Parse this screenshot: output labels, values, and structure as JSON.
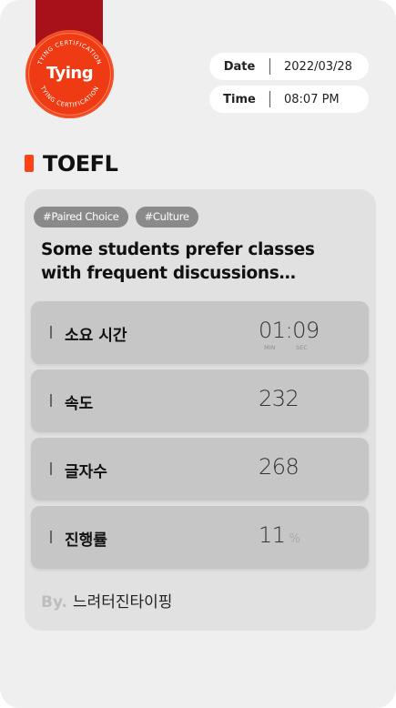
{
  "medal": {
    "word": "Tying",
    "arc_top": "TYING CERTIFICATION",
    "arc_bottom": "TYING CERTIFICATION"
  },
  "date": {
    "label": "Date",
    "value": "2022/03/28"
  },
  "time": {
    "label": "Time",
    "value": "08:07 PM"
  },
  "section_title": "TOEFL",
  "tags": [
    "#Paired Choice",
    "#Culture"
  ],
  "headline": "Some students prefer classes with frequent discussions between the…",
  "stats": {
    "duration": {
      "label": "소요 시간",
      "value": "01:09",
      "min_label": "MIN",
      "sec_label": "SEC"
    },
    "speed": {
      "label": "속도",
      "value": "232"
    },
    "chars": {
      "label": "글자수",
      "value": "268"
    },
    "progress": {
      "label": "진행률",
      "value": "11",
      "unit": "%"
    }
  },
  "byline": {
    "prefix": "By.",
    "author": "느려터진타이핑"
  },
  "colors": {
    "accent": "#ff4317",
    "ribbon": "#a8101a",
    "medal": "#ef3b14"
  }
}
